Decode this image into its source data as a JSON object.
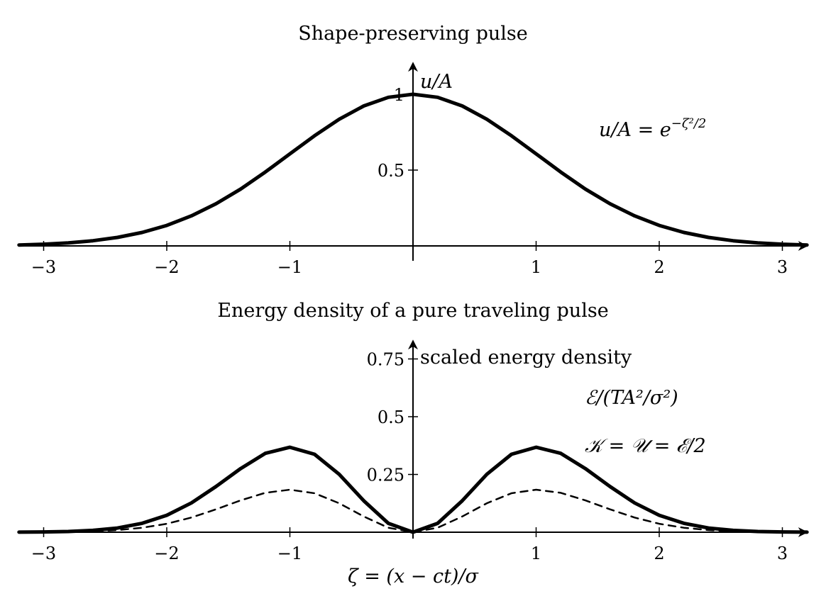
{
  "chart_data": [
    {
      "type": "line",
      "title": "Shape-preserving pulse",
      "xlabel": "",
      "ylabel": "u/A",
      "xlim": [
        -3.2,
        3.2
      ],
      "ylim": [
        0,
        1.15
      ],
      "xticks": [
        -3,
        -2,
        -1,
        1,
        2,
        3
      ],
      "xtick_labels": [
        "−3",
        "−2",
        "−1",
        "1",
        "2",
        "3"
      ],
      "yticks": [
        0.5,
        1
      ],
      "ytick_labels": [
        "0.5",
        "1"
      ],
      "series": [
        {
          "style": "solid",
          "x": [
            -3.2,
            -3.0,
            -2.8,
            -2.6,
            -2.4,
            -2.2,
            -2.0,
            -1.8,
            -1.6,
            -1.4,
            -1.2,
            -1.0,
            -0.8,
            -0.6,
            -0.4,
            -0.2,
            0.0,
            0.2,
            0.4,
            0.6,
            0.8,
            1.0,
            1.2,
            1.4,
            1.6,
            1.8,
            2.0,
            2.2,
            2.4,
            2.6,
            2.8,
            3.0,
            3.2
          ],
          "values": [
            0.006,
            0.011,
            0.02,
            0.034,
            0.056,
            0.089,
            0.135,
            0.198,
            0.278,
            0.375,
            0.487,
            0.607,
            0.726,
            0.835,
            0.923,
            0.98,
            1.0,
            0.98,
            0.923,
            0.835,
            0.726,
            0.607,
            0.487,
            0.375,
            0.278,
            0.198,
            0.135,
            0.089,
            0.056,
            0.034,
            0.02,
            0.011,
            0.006
          ]
        }
      ],
      "annotations": [
        {
          "text_base": "u/A = e",
          "text_sup": "−ζ²/2"
        }
      ],
      "grid": false,
      "legend": "none"
    },
    {
      "type": "line",
      "title": "Energy density of a pure traveling pulse",
      "xlabel": "ζ = (x − ct)/σ",
      "ylabel": "scaled energy density",
      "xlim": [
        -3.2,
        3.2
      ],
      "ylim": [
        0,
        0.82
      ],
      "xticks": [
        -3,
        -2,
        -1,
        1,
        2,
        3
      ],
      "xtick_labels": [
        "−3",
        "−2",
        "−1",
        "1",
        "2",
        "3"
      ],
      "yticks": [
        0.25,
        0.5,
        0.75
      ],
      "ytick_labels": [
        "0.25",
        "0.5",
        "0.75"
      ],
      "series": [
        {
          "style": "solid",
          "x": [
            -3.2,
            -3.0,
            -2.8,
            -2.6,
            -2.4,
            -2.2,
            -2.0,
            -1.8,
            -1.6,
            -1.4,
            -1.2,
            -1.0,
            -0.8,
            -0.6,
            -0.4,
            -0.2,
            0.0,
            0.2,
            0.4,
            0.6,
            0.8,
            1.0,
            1.2,
            1.4,
            1.6,
            1.8,
            2.0,
            2.2,
            2.4,
            2.6,
            2.8,
            3.0,
            3.2
          ],
          "values": [
            0.0003,
            0.0011,
            0.0031,
            0.0079,
            0.0182,
            0.0385,
            0.0733,
            0.1268,
            0.1979,
            0.2755,
            0.3413,
            0.3679,
            0.3374,
            0.2509,
            0.1363,
            0.0384,
            0.0,
            0.0384,
            0.1363,
            0.2509,
            0.3374,
            0.3679,
            0.3413,
            0.2755,
            0.1979,
            0.1268,
            0.0733,
            0.0385,
            0.0182,
            0.0079,
            0.0031,
            0.0011,
            0.0003
          ]
        },
        {
          "style": "dashed",
          "x": [
            -3.2,
            -3.0,
            -2.8,
            -2.6,
            -2.4,
            -2.2,
            -2.0,
            -1.8,
            -1.6,
            -1.4,
            -1.2,
            -1.0,
            -0.8,
            -0.6,
            -0.4,
            -0.2,
            0.0,
            0.2,
            0.4,
            0.6,
            0.8,
            1.0,
            1.2,
            1.4,
            1.6,
            1.8,
            2.0,
            2.2,
            2.4,
            2.6,
            2.8,
            3.0,
            3.2
          ],
          "values": [
            0.0002,
            0.0006,
            0.0016,
            0.004,
            0.0091,
            0.0193,
            0.0366,
            0.0634,
            0.099,
            0.1378,
            0.1707,
            0.1839,
            0.1687,
            0.1254,
            0.0682,
            0.0192,
            0.0,
            0.0192,
            0.0682,
            0.1254,
            0.1687,
            0.1839,
            0.1707,
            0.1378,
            0.099,
            0.0634,
            0.0366,
            0.0193,
            0.0091,
            0.004,
            0.0016,
            0.0006,
            0.0002
          ]
        }
      ],
      "annotations": [
        {
          "text": "ℰ/(TA²/σ²)"
        },
        {
          "text": "𝒦 = 𝒰 = ℰ/2"
        }
      ],
      "grid": false,
      "legend": "none"
    }
  ]
}
